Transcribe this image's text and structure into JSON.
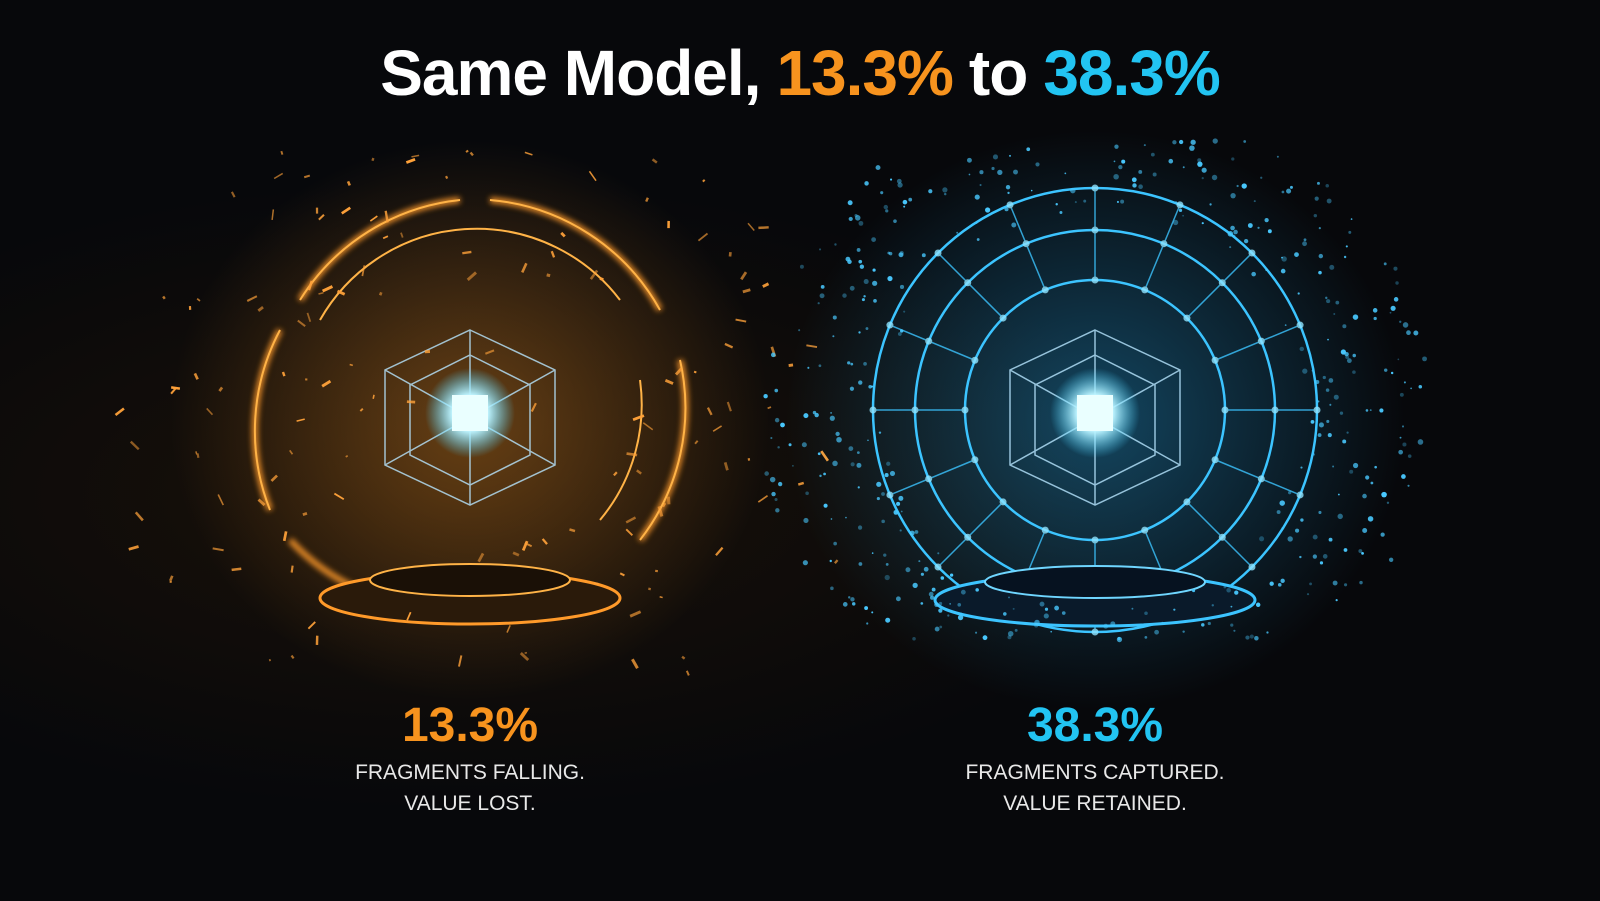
{
  "header": {
    "title": [
      "Same Model,",
      "13.3%",
      "to",
      "38.3%"
    ]
  },
  "panels": [
    {
      "value": "13.3%",
      "caption": [
        "FRAGMENTS FALLING.",
        "VALUE LOST."
      ]
    },
    {
      "value": "38.3%",
      "caption": [
        "FRAGMENTS CAPTURED.",
        "VALUE RETAINED."
      ]
    }
  ]
}
